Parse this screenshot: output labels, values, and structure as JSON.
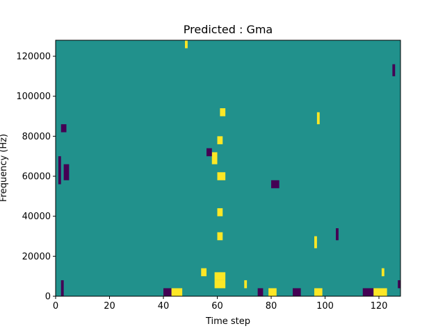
{
  "chart_data": {
    "type": "heatmap",
    "title": "Predicted : Gma",
    "xlabel": "Time step",
    "ylabel": "Frequency (Hz)",
    "xlim": [
      0,
      128
    ],
    "ylim": [
      0,
      128000
    ],
    "x_ticks": [
      0,
      20,
      40,
      60,
      80,
      100,
      120
    ],
    "x_tick_labels": [
      "0",
      "20",
      "40",
      "60",
      "80",
      "100",
      "120"
    ],
    "y_ticks": [
      0,
      20000,
      40000,
      60000,
      80000,
      100000,
      120000
    ],
    "y_tick_labels": [
      "0",
      "20000",
      "40000",
      "60000",
      "80000",
      "100000",
      "120000"
    ],
    "grid": false,
    "colormap": "viridis",
    "background_value": 0,
    "colors": {
      "low": "#440154",
      "mid": "#21918c",
      "high": "#fde725"
    },
    "cells": [
      {
        "x": [
          40,
          43
        ],
        "y": [
          0,
          4000
        ],
        "v": -1
      },
      {
        "x": [
          43,
          47
        ],
        "y": [
          0,
          4000
        ],
        "v": 1
      },
      {
        "x": [
          75,
          77
        ],
        "y": [
          0,
          4000
        ],
        "v": -1
      },
      {
        "x": [
          79,
          82
        ],
        "y": [
          0,
          4000
        ],
        "v": 1
      },
      {
        "x": [
          88,
          91
        ],
        "y": [
          0,
          4000
        ],
        "v": -1
      },
      {
        "x": [
          96,
          99
        ],
        "y": [
          0,
          4000
        ],
        "v": 1
      },
      {
        "x": [
          114,
          118
        ],
        "y": [
          0,
          4000
        ],
        "v": -1
      },
      {
        "x": [
          118,
          123
        ],
        "y": [
          0,
          4000
        ],
        "v": 1
      },
      {
        "x": [
          2,
          3
        ],
        "y": [
          0,
          8000
        ],
        "v": -1
      },
      {
        "x": [
          59,
          63
        ],
        "y": [
          4000,
          8000
        ],
        "v": 1
      },
      {
        "x": [
          70,
          71
        ],
        "y": [
          4000,
          8000
        ],
        "v": 1
      },
      {
        "x": [
          127,
          128
        ],
        "y": [
          4000,
          8000
        ],
        "v": -1
      },
      {
        "x": [
          59,
          63
        ],
        "y": [
          8000,
          12000
        ],
        "v": 1
      },
      {
        "x": [
          54,
          56
        ],
        "y": [
          10000,
          14000
        ],
        "v": 1
      },
      {
        "x": [
          121,
          122
        ],
        "y": [
          10000,
          14000
        ],
        "v": 1
      },
      {
        "x": [
          1,
          2
        ],
        "y": [
          56000,
          70000
        ],
        "v": -1
      },
      {
        "x": [
          3,
          5
        ],
        "y": [
          58000,
          66000
        ],
        "v": -1
      },
      {
        "x": [
          2,
          4
        ],
        "y": [
          82000,
          86000
        ],
        "v": -1
      },
      {
        "x": [
          60,
          63
        ],
        "y": [
          58000,
          62000
        ],
        "v": 1
      },
      {
        "x": [
          60,
          62
        ],
        "y": [
          76000,
          80000
        ],
        "v": 1
      },
      {
        "x": [
          61,
          63
        ],
        "y": [
          90000,
          94000
        ],
        "v": 1
      },
      {
        "x": [
          80,
          83
        ],
        "y": [
          54000,
          58000
        ],
        "v": -1
      },
      {
        "x": [
          60,
          62
        ],
        "y": [
          40000,
          44000
        ],
        "v": 1
      },
      {
        "x": [
          60,
          62
        ],
        "y": [
          28000,
          32000
        ],
        "v": 1
      },
      {
        "x": [
          58,
          60
        ],
        "y": [
          66000,
          72000
        ],
        "v": 1
      },
      {
        "x": [
          56,
          58
        ],
        "y": [
          70000,
          74000
        ],
        "v": -1
      },
      {
        "x": [
          96,
          97
        ],
        "y": [
          24000,
          30000
        ],
        "v": 1
      },
      {
        "x": [
          97,
          98
        ],
        "y": [
          86000,
          92000
        ],
        "v": 1
      },
      {
        "x": [
          48,
          49
        ],
        "y": [
          124000,
          128000
        ],
        "v": 1
      },
      {
        "x": [
          104,
          105
        ],
        "y": [
          28000,
          34000
        ],
        "v": -1
      },
      {
        "x": [
          125,
          126
        ],
        "y": [
          110000,
          116000
        ],
        "v": -1
      }
    ]
  }
}
